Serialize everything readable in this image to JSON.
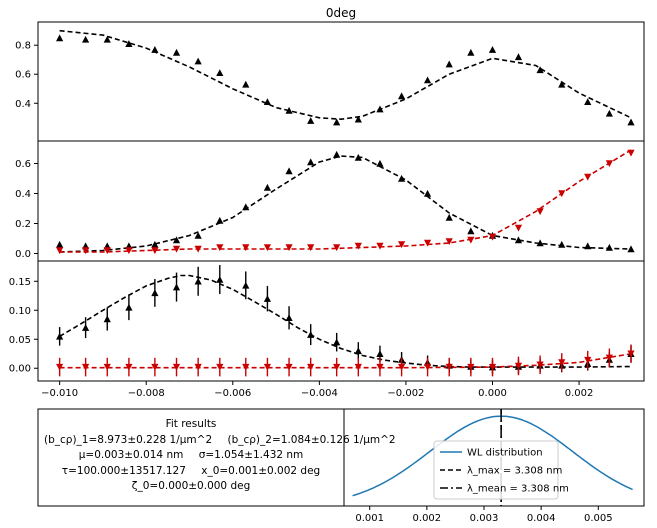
{
  "chart_data": [
    {
      "type": "scatter",
      "panel": "top",
      "title": "0deg",
      "xlim": [
        -0.0105,
        0.0035
      ],
      "ylim": [
        0.14,
        0.96
      ],
      "yticks": [
        0.4,
        0.6,
        0.8
      ],
      "yticklabels": [
        "0.4",
        "0.6",
        "0.8"
      ],
      "x": [
        -0.01,
        -0.0094,
        -0.0089,
        -0.0084,
        -0.0078,
        -0.0073,
        -0.0068,
        -0.0063,
        -0.0057,
        -0.0052,
        -0.0047,
        -0.0042,
        -0.0036,
        -0.0031,
        -0.0026,
        -0.0021,
        -0.0015,
        -0.001,
        -0.0005,
        0.0,
        0.0006,
        0.0011,
        0.0016,
        0.0022,
        0.0027,
        0.0032
      ],
      "series": [
        {
          "values": [
            0.85,
            0.84,
            0.84,
            0.81,
            0.77,
            0.75,
            0.69,
            0.61,
            0.53,
            0.41,
            0.35,
            0.28,
            0.27,
            0.29,
            0.36,
            0.45,
            0.56,
            0.67,
            0.75,
            0.77,
            0.72,
            0.63,
            0.53,
            0.41,
            0.33,
            0.27
          ],
          "color": "#000000",
          "marker": "triangle-up"
        }
      ],
      "fit": {
        "x": [
          -0.01,
          -0.009,
          -0.008,
          -0.007,
          -0.006,
          -0.005,
          -0.004,
          -0.0035,
          -0.003,
          -0.002,
          -0.001,
          0.0,
          0.001,
          0.002,
          0.0032
        ],
        "y": [
          0.9,
          0.87,
          0.78,
          0.65,
          0.5,
          0.37,
          0.3,
          0.29,
          0.31,
          0.43,
          0.6,
          0.71,
          0.66,
          0.47,
          0.3
        ]
      }
    },
    {
      "type": "scatter",
      "panel": "middle",
      "xlim": [
        -0.0105,
        0.0035
      ],
      "ylim": [
        -0.05,
        0.75
      ],
      "yticks": [
        0.0,
        0.2,
        0.4,
        0.6
      ],
      "yticklabels": [
        "0.0",
        "0.2",
        "0.4",
        "0.6"
      ],
      "x": [
        -0.01,
        -0.0094,
        -0.0089,
        -0.0084,
        -0.0078,
        -0.0073,
        -0.0068,
        -0.0063,
        -0.0057,
        -0.0052,
        -0.0047,
        -0.0042,
        -0.0036,
        -0.0031,
        -0.0026,
        -0.0021,
        -0.0015,
        -0.001,
        -0.0005,
        0.0,
        0.0006,
        0.0011,
        0.0016,
        0.0022,
        0.0027,
        0.0032
      ],
      "series": [
        {
          "values": [
            0.06,
            0.05,
            0.05,
            0.05,
            0.06,
            0.09,
            0.12,
            0.22,
            0.31,
            0.44,
            0.55,
            0.61,
            0.66,
            0.64,
            0.6,
            0.5,
            0.4,
            0.24,
            0.15,
            0.12,
            0.09,
            0.07,
            0.06,
            0.05,
            0.04,
            0.03
          ],
          "color": "#000000",
          "marker": "triangle-up"
        },
        {
          "values": [
            0.02,
            0.02,
            0.02,
            0.02,
            0.02,
            0.03,
            0.03,
            0.04,
            0.04,
            0.04,
            0.04,
            0.04,
            0.04,
            0.05,
            0.05,
            0.06,
            0.07,
            0.08,
            0.09,
            0.11,
            0.17,
            0.28,
            0.4,
            0.51,
            0.6,
            0.67
          ],
          "color": "#cc0000",
          "marker": "triangle-down"
        }
      ],
      "fits": [
        {
          "x": [
            -0.01,
            -0.009,
            -0.008,
            -0.007,
            -0.006,
            -0.005,
            -0.004,
            -0.0035,
            -0.003,
            -0.002,
            -0.001,
            0.0,
            0.001,
            0.002,
            0.0032
          ],
          "y": [
            0.01,
            0.02,
            0.05,
            0.12,
            0.24,
            0.43,
            0.61,
            0.65,
            0.64,
            0.49,
            0.27,
            0.12,
            0.07,
            0.04,
            0.03
          ],
          "color": "#000000"
        },
        {
          "x": [
            -0.01,
            -0.009,
            -0.008,
            -0.007,
            -0.006,
            -0.005,
            -0.004,
            -0.003,
            -0.002,
            -0.001,
            0.0,
            0.001,
            0.002,
            0.0032
          ],
          "y": [
            0.01,
            0.01,
            0.02,
            0.03,
            0.03,
            0.03,
            0.03,
            0.04,
            0.05,
            0.07,
            0.12,
            0.28,
            0.48,
            0.69
          ],
          "color": "#cc0000"
        }
      ]
    },
    {
      "type": "scatter",
      "panel": "bottom",
      "xlim": [
        -0.0105,
        0.0035
      ],
      "ylim": [
        -0.022,
        0.185
      ],
      "yticks": [
        0.0,
        0.05,
        0.1,
        0.15
      ],
      "yticklabels": [
        "0.00",
        "0.05",
        "0.10",
        "0.15"
      ],
      "xticks": [
        -0.01,
        -0.008,
        -0.006,
        -0.004,
        -0.002,
        0.0,
        0.002
      ],
      "xticklabels": [
        "−0.010",
        "−0.008",
        "−0.006",
        "−0.004",
        "−0.002",
        "0.000",
        "0.002"
      ],
      "x": [
        -0.01,
        -0.0094,
        -0.0089,
        -0.0084,
        -0.0078,
        -0.0073,
        -0.0068,
        -0.0063,
        -0.0057,
        -0.0052,
        -0.0047,
        -0.0042,
        -0.0036,
        -0.0031,
        -0.0026,
        -0.0021,
        -0.0015,
        -0.001,
        -0.0005,
        0.0,
        0.0006,
        0.0011,
        0.0016,
        0.0022,
        0.0027,
        0.0032
      ],
      "series": [
        {
          "values": [
            0.055,
            0.07,
            0.085,
            0.105,
            0.13,
            0.14,
            0.15,
            0.153,
            0.143,
            0.12,
            0.087,
            0.058,
            0.045,
            0.03,
            0.025,
            0.015,
            0.01,
            0.005,
            0.003,
            0.002,
            0.003,
            0.005,
            0.005,
            0.008,
            0.015,
            0.025
          ],
          "color": "#000000",
          "marker": "triangle-up",
          "err": [
            0.016,
            0.018,
            0.02,
            0.022,
            0.024,
            0.025,
            0.025,
            0.025,
            0.024,
            0.022,
            0.02,
            0.018,
            0.016,
            0.015,
            0.014,
            0.013,
            0.012,
            0.012,
            0.012,
            0.012,
            0.012,
            0.012,
            0.012,
            0.012,
            0.013,
            0.014
          ]
        },
        {
          "values": [
            0.002,
            0.002,
            0.002,
            0.002,
            0.002,
            0.002,
            0.002,
            0.002,
            0.002,
            0.002,
            0.002,
            0.002,
            0.002,
            0.002,
            0.002,
            0.002,
            0.002,
            0.002,
            0.002,
            0.002,
            0.004,
            0.006,
            0.01,
            0.014,
            0.018,
            0.025
          ],
          "color": "#cc0000",
          "marker": "triangle-down",
          "err": [
            0.016,
            0.016,
            0.016,
            0.016,
            0.016,
            0.016,
            0.016,
            0.016,
            0.016,
            0.016,
            0.016,
            0.016,
            0.016,
            0.016,
            0.016,
            0.016,
            0.016,
            0.016,
            0.016,
            0.016,
            0.016,
            0.016,
            0.016,
            0.016,
            0.016,
            0.016
          ]
        }
      ],
      "fits": [
        {
          "x": [
            -0.01,
            -0.0095,
            -0.009,
            -0.0085,
            -0.008,
            -0.0075,
            -0.0072,
            -0.007,
            -0.0065,
            -0.006,
            -0.0055,
            -0.005,
            -0.0045,
            -0.004,
            -0.0035,
            -0.003,
            -0.0025,
            -0.002,
            -0.0015,
            -0.001,
            -0.0005,
            0.0,
            0.001,
            0.002,
            0.0032
          ],
          "y": [
            0.055,
            0.077,
            0.1,
            0.122,
            0.142,
            0.155,
            0.16,
            0.16,
            0.152,
            0.136,
            0.115,
            0.093,
            0.07,
            0.05,
            0.034,
            0.022,
            0.014,
            0.009,
            0.005,
            0.003,
            0.002,
            0.002,
            0.002,
            0.002,
            0.003
          ],
          "color": "#000000"
        },
        {
          "x": [
            -0.01,
            -0.008,
            -0.006,
            -0.004,
            -0.002,
            0.0,
            0.001,
            0.002,
            0.0032
          ],
          "y": [
            0.001,
            0.001,
            0.001,
            0.001,
            0.001,
            0.002,
            0.005,
            0.01,
            0.025
          ],
          "color": "#cc0000"
        }
      ]
    },
    {
      "type": "line",
      "panel": "wl",
      "xlim": [
        0.00055,
        0.0058
      ],
      "ylim": [
        0,
        1.08
      ],
      "xticks": [
        0.001,
        0.002,
        0.003,
        0.004,
        0.005
      ],
      "xticklabels": [
        "0.001",
        "0.002",
        "0.003",
        "0.004",
        "0.005"
      ],
      "gaussian": {
        "mean": 0.0033,
        "sigma": 0.00125
      },
      "curve_color": "#1f77b4",
      "vlines": [
        0.0033,
        0.0033
      ],
      "legend": {
        "placement": "lower center",
        "entries": [
          {
            "label": "WL distribution",
            "style": "solid",
            "color": "#1f77b4"
          },
          {
            "label": "λ_max = 3.308 nm",
            "style": "dashed",
            "color": "#000000"
          },
          {
            "label": "λ_mean = 3.308 nm",
            "style": "dashdot",
            "color": "#000000"
          }
        ]
      }
    }
  ],
  "fit_results": {
    "heading": "Fit results",
    "line1a": "(b_cρ)_1=8.973±0.228 1/μm^2",
    "line1b": "(b_cρ)_2=1.084±0.126 1/μm^2",
    "line2a": "μ=0.003±0.014 nm",
    "line2b": "σ=1.054±1.432 nm",
    "line3a": "τ=100.000±13517.127",
    "line3b": "x_0=0.001±0.002 deg",
    "line4": "ζ_0=0.000±0.000  deg"
  }
}
